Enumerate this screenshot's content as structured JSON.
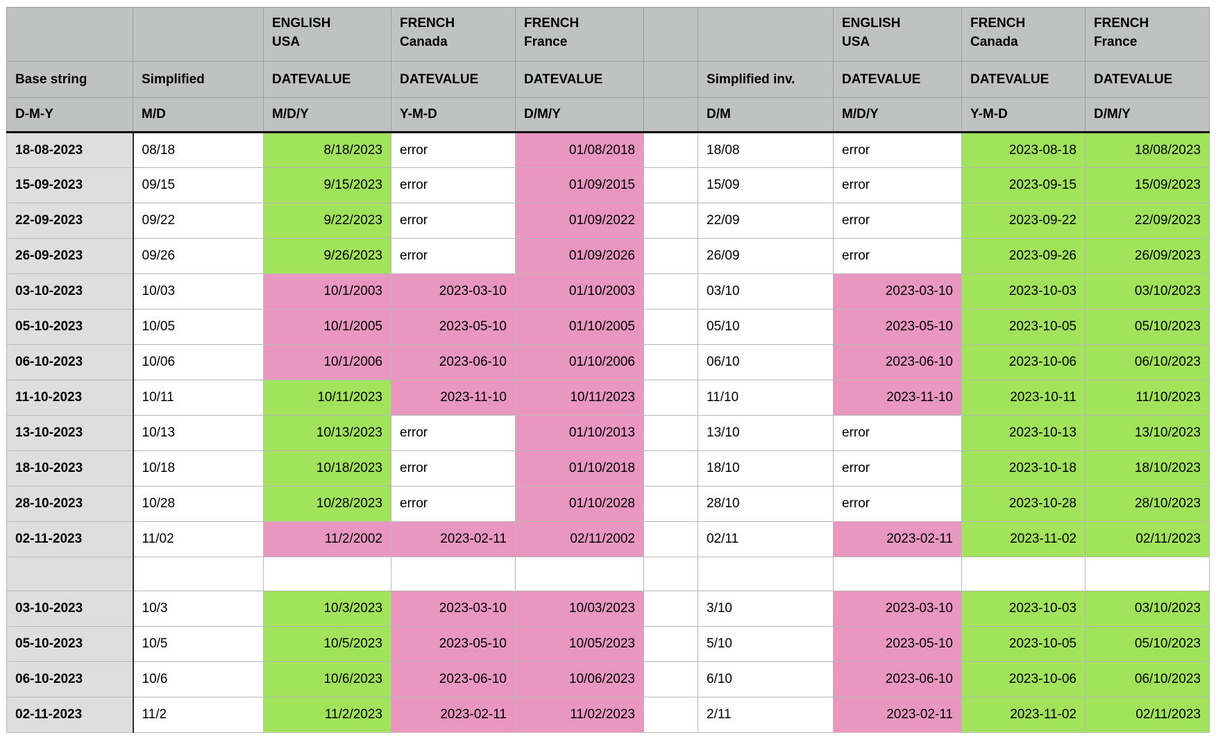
{
  "colors": {
    "header-bg": "#c0c2c1",
    "base-col-bg": "#dedede",
    "correct-bg": "#a1e35b",
    "incorrect-bg": "#e997c1"
  },
  "table": {
    "header": {
      "rows": [
        {
          "cells": [
            "",
            "",
            "ENGLISH\nUSA",
            "FRENCH\nCanada",
            "FRENCH\nFrance",
            "",
            "",
            "ENGLISH\nUSA",
            "FRENCH\nCanada",
            "FRENCH\nFrance"
          ]
        },
        {
          "cells": [
            "Base string",
            "Simplified",
            "DATEVALUE",
            "DATEVALUE",
            "DATEVALUE",
            "",
            "Simplified inv.",
            "DATEVALUE",
            "DATEVALUE",
            "DATEVALUE"
          ]
        },
        {
          "cells": [
            "D-M-Y",
            "M/D",
            "M/D/Y",
            "Y-M-D",
            "D/M/Y",
            "",
            "D/M",
            "M/D/Y",
            "Y-M-D",
            "D/M/Y"
          ]
        }
      ]
    },
    "rows": [
      {
        "base": "18-08-2023",
        "cells": [
          {
            "v": "08/18",
            "s": "plain"
          },
          {
            "v": "8/18/2023",
            "s": "good"
          },
          {
            "v": "error",
            "s": "plain"
          },
          {
            "v": "01/08/2018",
            "s": "bad"
          },
          {
            "v": "18/08",
            "s": "plain"
          },
          {
            "v": "error",
            "s": "plain"
          },
          {
            "v": "2023-08-18",
            "s": "good"
          },
          {
            "v": "18/08/2023",
            "s": "good"
          }
        ]
      },
      {
        "base": "15-09-2023",
        "cells": [
          {
            "v": "09/15",
            "s": "plain"
          },
          {
            "v": "9/15/2023",
            "s": "good"
          },
          {
            "v": "error",
            "s": "plain"
          },
          {
            "v": "01/09/2015",
            "s": "bad"
          },
          {
            "v": "15/09",
            "s": "plain"
          },
          {
            "v": "error",
            "s": "plain"
          },
          {
            "v": "2023-09-15",
            "s": "good"
          },
          {
            "v": "15/09/2023",
            "s": "good"
          }
        ]
      },
      {
        "base": "22-09-2023",
        "cells": [
          {
            "v": "09/22",
            "s": "plain"
          },
          {
            "v": "9/22/2023",
            "s": "good"
          },
          {
            "v": "error",
            "s": "plain"
          },
          {
            "v": "01/09/2022",
            "s": "bad"
          },
          {
            "v": "22/09",
            "s": "plain"
          },
          {
            "v": "error",
            "s": "plain"
          },
          {
            "v": "2023-09-22",
            "s": "good"
          },
          {
            "v": "22/09/2023",
            "s": "good"
          }
        ]
      },
      {
        "base": "26-09-2023",
        "cells": [
          {
            "v": "09/26",
            "s": "plain"
          },
          {
            "v": "9/26/2023",
            "s": "good"
          },
          {
            "v": "error",
            "s": "plain"
          },
          {
            "v": "01/09/2026",
            "s": "bad"
          },
          {
            "v": "26/09",
            "s": "plain"
          },
          {
            "v": "error",
            "s": "plain"
          },
          {
            "v": "2023-09-26",
            "s": "good"
          },
          {
            "v": "26/09/2023",
            "s": "good"
          }
        ]
      },
      {
        "base": "03-10-2023",
        "cells": [
          {
            "v": "10/03",
            "s": "plain"
          },
          {
            "v": "10/1/2003",
            "s": "bad"
          },
          {
            "v": "2023-03-10",
            "s": "bad"
          },
          {
            "v": "01/10/2003",
            "s": "bad"
          },
          {
            "v": "03/10",
            "s": "plain"
          },
          {
            "v": "2023-03-10",
            "s": "bad"
          },
          {
            "v": "2023-10-03",
            "s": "good"
          },
          {
            "v": "03/10/2023",
            "s": "good"
          }
        ]
      },
      {
        "base": "05-10-2023",
        "cells": [
          {
            "v": "10/05",
            "s": "plain"
          },
          {
            "v": "10/1/2005",
            "s": "bad"
          },
          {
            "v": "2023-05-10",
            "s": "bad"
          },
          {
            "v": "01/10/2005",
            "s": "bad"
          },
          {
            "v": "05/10",
            "s": "plain"
          },
          {
            "v": "2023-05-10",
            "s": "bad"
          },
          {
            "v": "2023-10-05",
            "s": "good"
          },
          {
            "v": "05/10/2023",
            "s": "good"
          }
        ]
      },
      {
        "base": "06-10-2023",
        "cells": [
          {
            "v": "10/06",
            "s": "plain"
          },
          {
            "v": "10/1/2006",
            "s": "bad"
          },
          {
            "v": "2023-06-10",
            "s": "bad"
          },
          {
            "v": "01/10/2006",
            "s": "bad"
          },
          {
            "v": "06/10",
            "s": "plain"
          },
          {
            "v": "2023-06-10",
            "s": "bad"
          },
          {
            "v": "2023-10-06",
            "s": "good"
          },
          {
            "v": "06/10/2023",
            "s": "good"
          }
        ]
      },
      {
        "base": "11-10-2023",
        "cells": [
          {
            "v": "10/11",
            "s": "plain"
          },
          {
            "v": "10/11/2023",
            "s": "good"
          },
          {
            "v": "2023-11-10",
            "s": "bad"
          },
          {
            "v": "10/11/2023",
            "s": "bad"
          },
          {
            "v": "11/10",
            "s": "plain"
          },
          {
            "v": "2023-11-10",
            "s": "bad"
          },
          {
            "v": "2023-10-11",
            "s": "good"
          },
          {
            "v": "11/10/2023",
            "s": "good"
          }
        ]
      },
      {
        "base": "13-10-2023",
        "cells": [
          {
            "v": "10/13",
            "s": "plain"
          },
          {
            "v": "10/13/2023",
            "s": "good"
          },
          {
            "v": "error",
            "s": "plain"
          },
          {
            "v": "01/10/2013",
            "s": "bad"
          },
          {
            "v": "13/10",
            "s": "plain"
          },
          {
            "v": "error",
            "s": "plain"
          },
          {
            "v": "2023-10-13",
            "s": "good"
          },
          {
            "v": "13/10/2023",
            "s": "good"
          }
        ]
      },
      {
        "base": "18-10-2023",
        "cells": [
          {
            "v": "10/18",
            "s": "plain"
          },
          {
            "v": "10/18/2023",
            "s": "good"
          },
          {
            "v": "error",
            "s": "plain"
          },
          {
            "v": "01/10/2018",
            "s": "bad"
          },
          {
            "v": "18/10",
            "s": "plain"
          },
          {
            "v": "error",
            "s": "plain"
          },
          {
            "v": "2023-10-18",
            "s": "good"
          },
          {
            "v": "18/10/2023",
            "s": "good"
          }
        ]
      },
      {
        "base": "28-10-2023",
        "cells": [
          {
            "v": "10/28",
            "s": "plain"
          },
          {
            "v": "10/28/2023",
            "s": "good"
          },
          {
            "v": "error",
            "s": "plain"
          },
          {
            "v": "01/10/2028",
            "s": "bad"
          },
          {
            "v": "28/10",
            "s": "plain"
          },
          {
            "v": "error",
            "s": "plain"
          },
          {
            "v": "2023-10-28",
            "s": "good"
          },
          {
            "v": "28/10/2023",
            "s": "good"
          }
        ]
      },
      {
        "base": "02-11-2023",
        "cells": [
          {
            "v": "11/02",
            "s": "plain"
          },
          {
            "v": "11/2/2002",
            "s": "bad"
          },
          {
            "v": "2023-02-11",
            "s": "bad"
          },
          {
            "v": "02/11/2002",
            "s": "bad"
          },
          {
            "v": "02/11",
            "s": "plain"
          },
          {
            "v": "2023-02-11",
            "s": "bad"
          },
          {
            "v": "2023-11-02",
            "s": "good"
          },
          {
            "v": "02/11/2023",
            "s": "good"
          }
        ]
      },
      {
        "blank": true,
        "base": "",
        "cells": [
          {
            "v": "",
            "s": "plain"
          },
          {
            "v": "",
            "s": "plain"
          },
          {
            "v": "",
            "s": "plain"
          },
          {
            "v": "",
            "s": "plain"
          },
          {
            "v": "",
            "s": "plain"
          },
          {
            "v": "",
            "s": "plain"
          },
          {
            "v": "",
            "s": "plain"
          },
          {
            "v": "",
            "s": "plain"
          }
        ]
      },
      {
        "base": "03-10-2023",
        "cells": [
          {
            "v": "10/3",
            "s": "plain"
          },
          {
            "v": "10/3/2023",
            "s": "good"
          },
          {
            "v": "2023-03-10",
            "s": "bad"
          },
          {
            "v": "10/03/2023",
            "s": "bad"
          },
          {
            "v": "3/10",
            "s": "plain"
          },
          {
            "v": "2023-03-10",
            "s": "bad"
          },
          {
            "v": "2023-10-03",
            "s": "good"
          },
          {
            "v": "03/10/2023",
            "s": "good"
          }
        ]
      },
      {
        "base": "05-10-2023",
        "cells": [
          {
            "v": "10/5",
            "s": "plain"
          },
          {
            "v": "10/5/2023",
            "s": "good"
          },
          {
            "v": "2023-05-10",
            "s": "bad"
          },
          {
            "v": "10/05/2023",
            "s": "bad"
          },
          {
            "v": "5/10",
            "s": "plain"
          },
          {
            "v": "2023-05-10",
            "s": "bad"
          },
          {
            "v": "2023-10-05",
            "s": "good"
          },
          {
            "v": "05/10/2023",
            "s": "good"
          }
        ]
      },
      {
        "base": "06-10-2023",
        "cells": [
          {
            "v": "10/6",
            "s": "plain"
          },
          {
            "v": "10/6/2023",
            "s": "good"
          },
          {
            "v": "2023-06-10",
            "s": "bad"
          },
          {
            "v": "10/06/2023",
            "s": "bad"
          },
          {
            "v": "6/10",
            "s": "plain"
          },
          {
            "v": "2023-06-10",
            "s": "bad"
          },
          {
            "v": "2023-10-06",
            "s": "good"
          },
          {
            "v": "06/10/2023",
            "s": "good"
          }
        ]
      },
      {
        "base": "02-11-2023",
        "cells": [
          {
            "v": "11/2",
            "s": "plain"
          },
          {
            "v": "11/2/2023",
            "s": "good"
          },
          {
            "v": "2023-02-11",
            "s": "bad"
          },
          {
            "v": "11/02/2023",
            "s": "bad"
          },
          {
            "v": "2/11",
            "s": "plain"
          },
          {
            "v": "2023-02-11",
            "s": "bad"
          },
          {
            "v": "2023-11-02",
            "s": "good"
          },
          {
            "v": "02/11/2023",
            "s": "good"
          }
        ]
      }
    ]
  }
}
